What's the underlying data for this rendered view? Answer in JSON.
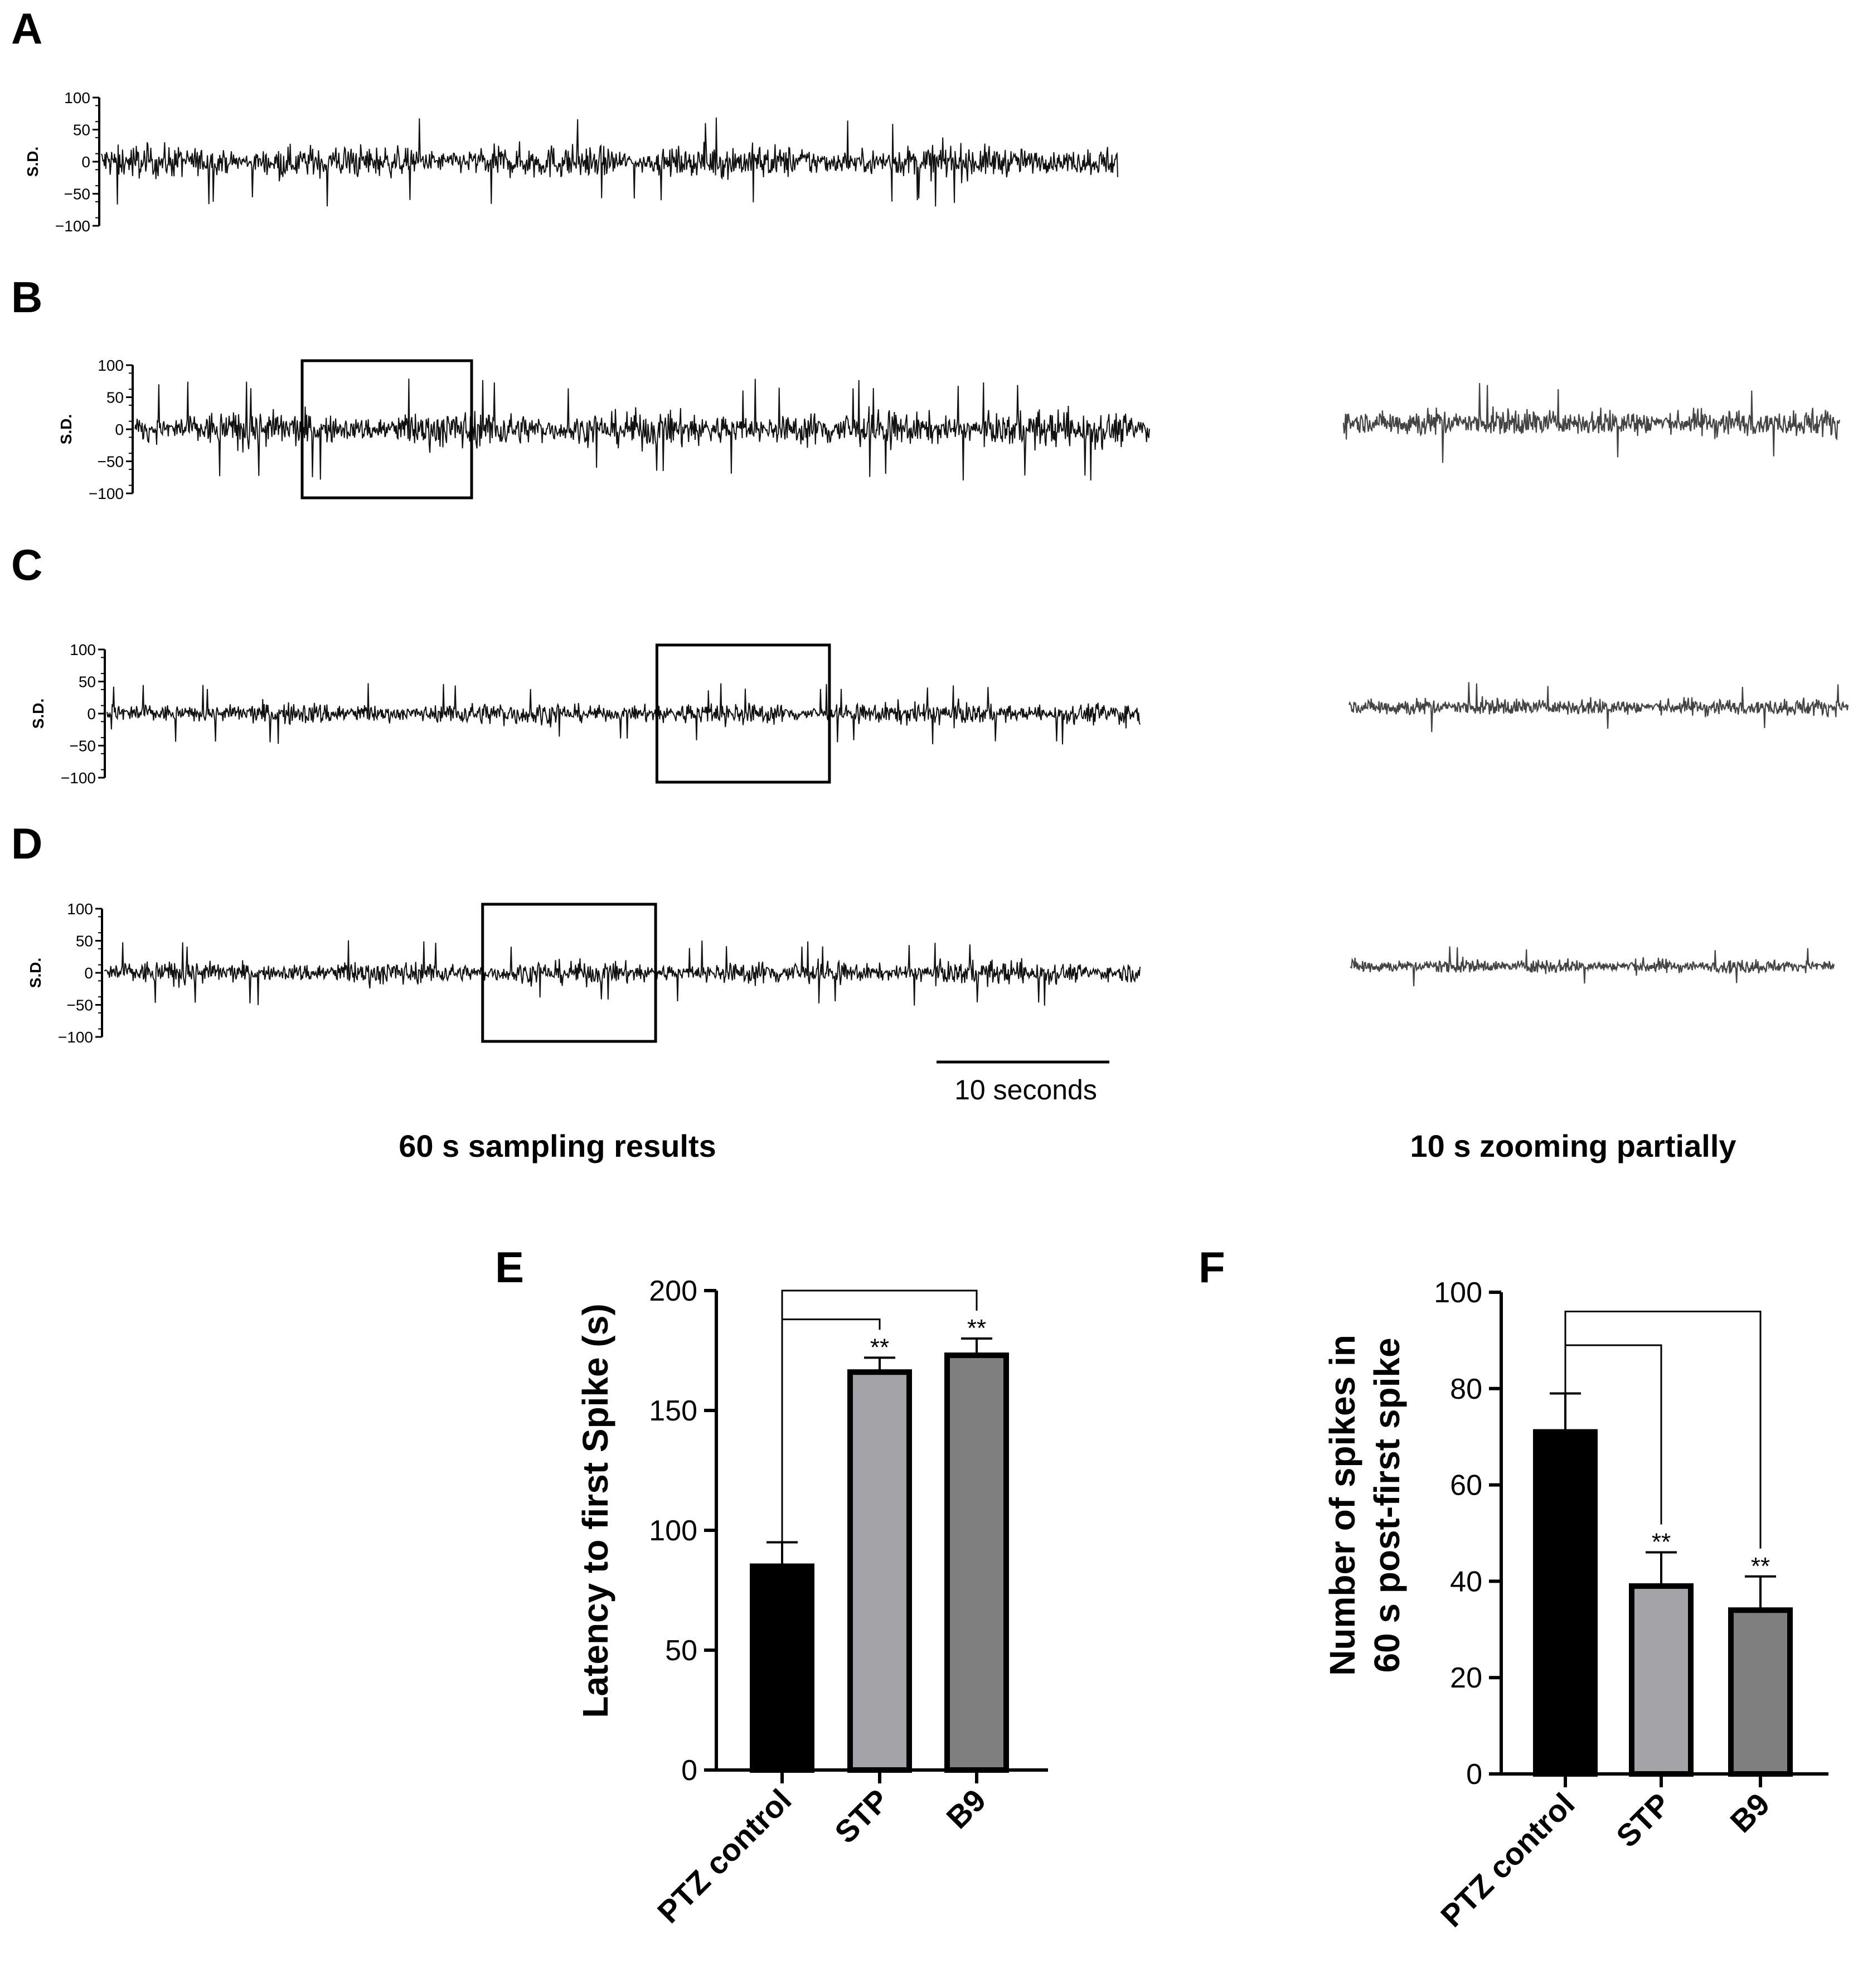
{
  "traces": {
    "ylabel": "S.D.",
    "ylim": [
      -100,
      100
    ],
    "yticks": [
      100,
      50,
      0,
      -50,
      -100
    ],
    "panels": [
      {
        "letter": "A",
        "amplitude": 45,
        "highlight_window_s": null,
        "zoom_amplitude": null
      },
      {
        "letter": "B",
        "amplitude": 50,
        "highlight_window_s": [
          10,
          20
        ],
        "zoom_amplitude": 40
      },
      {
        "letter": "C",
        "amplitude": 30,
        "highlight_window_s": [
          32,
          42
        ],
        "zoom_amplitude": 25
      },
      {
        "letter": "D",
        "amplitude": 32,
        "highlight_window_s": [
          22,
          32
        ],
        "zoom_amplitude": 20
      }
    ],
    "scale_bar": {
      "label": "10 seconds",
      "seconds": 10
    },
    "left_caption": "60 s sampling results",
    "right_caption": "10 s zooming partially",
    "duration_s": 60
  },
  "chart_data": [
    {
      "type": "bar",
      "panel": "E",
      "categories": [
        "PTZ control",
        "STP",
        "B9"
      ],
      "values": [
        85,
        166,
        173
      ],
      "errors": [
        10,
        6,
        7
      ],
      "colors": [
        "#000000",
        "#a3a3a8",
        "#7f7f7f"
      ],
      "ylabel": "Latency to first Spike (s)",
      "ylim": [
        0,
        200
      ],
      "yticks": [
        0,
        50,
        100,
        150,
        200
      ],
      "significance": [
        "",
        "**",
        "**"
      ]
    },
    {
      "type": "bar",
      "panel": "F",
      "categories": [
        "PTZ control",
        "STP",
        "B9"
      ],
      "values": [
        71,
        39,
        34
      ],
      "errors": [
        8,
        7,
        7
      ],
      "colors": [
        "#000000",
        "#a3a3a8",
        "#7f7f7f"
      ],
      "ylabel_lines": [
        "Number of spikes in",
        "60 s post-first spike"
      ],
      "ylim": [
        0,
        100
      ],
      "yticks": [
        0,
        20,
        40,
        60,
        80,
        100
      ],
      "significance": [
        "",
        "**",
        "**"
      ]
    }
  ]
}
